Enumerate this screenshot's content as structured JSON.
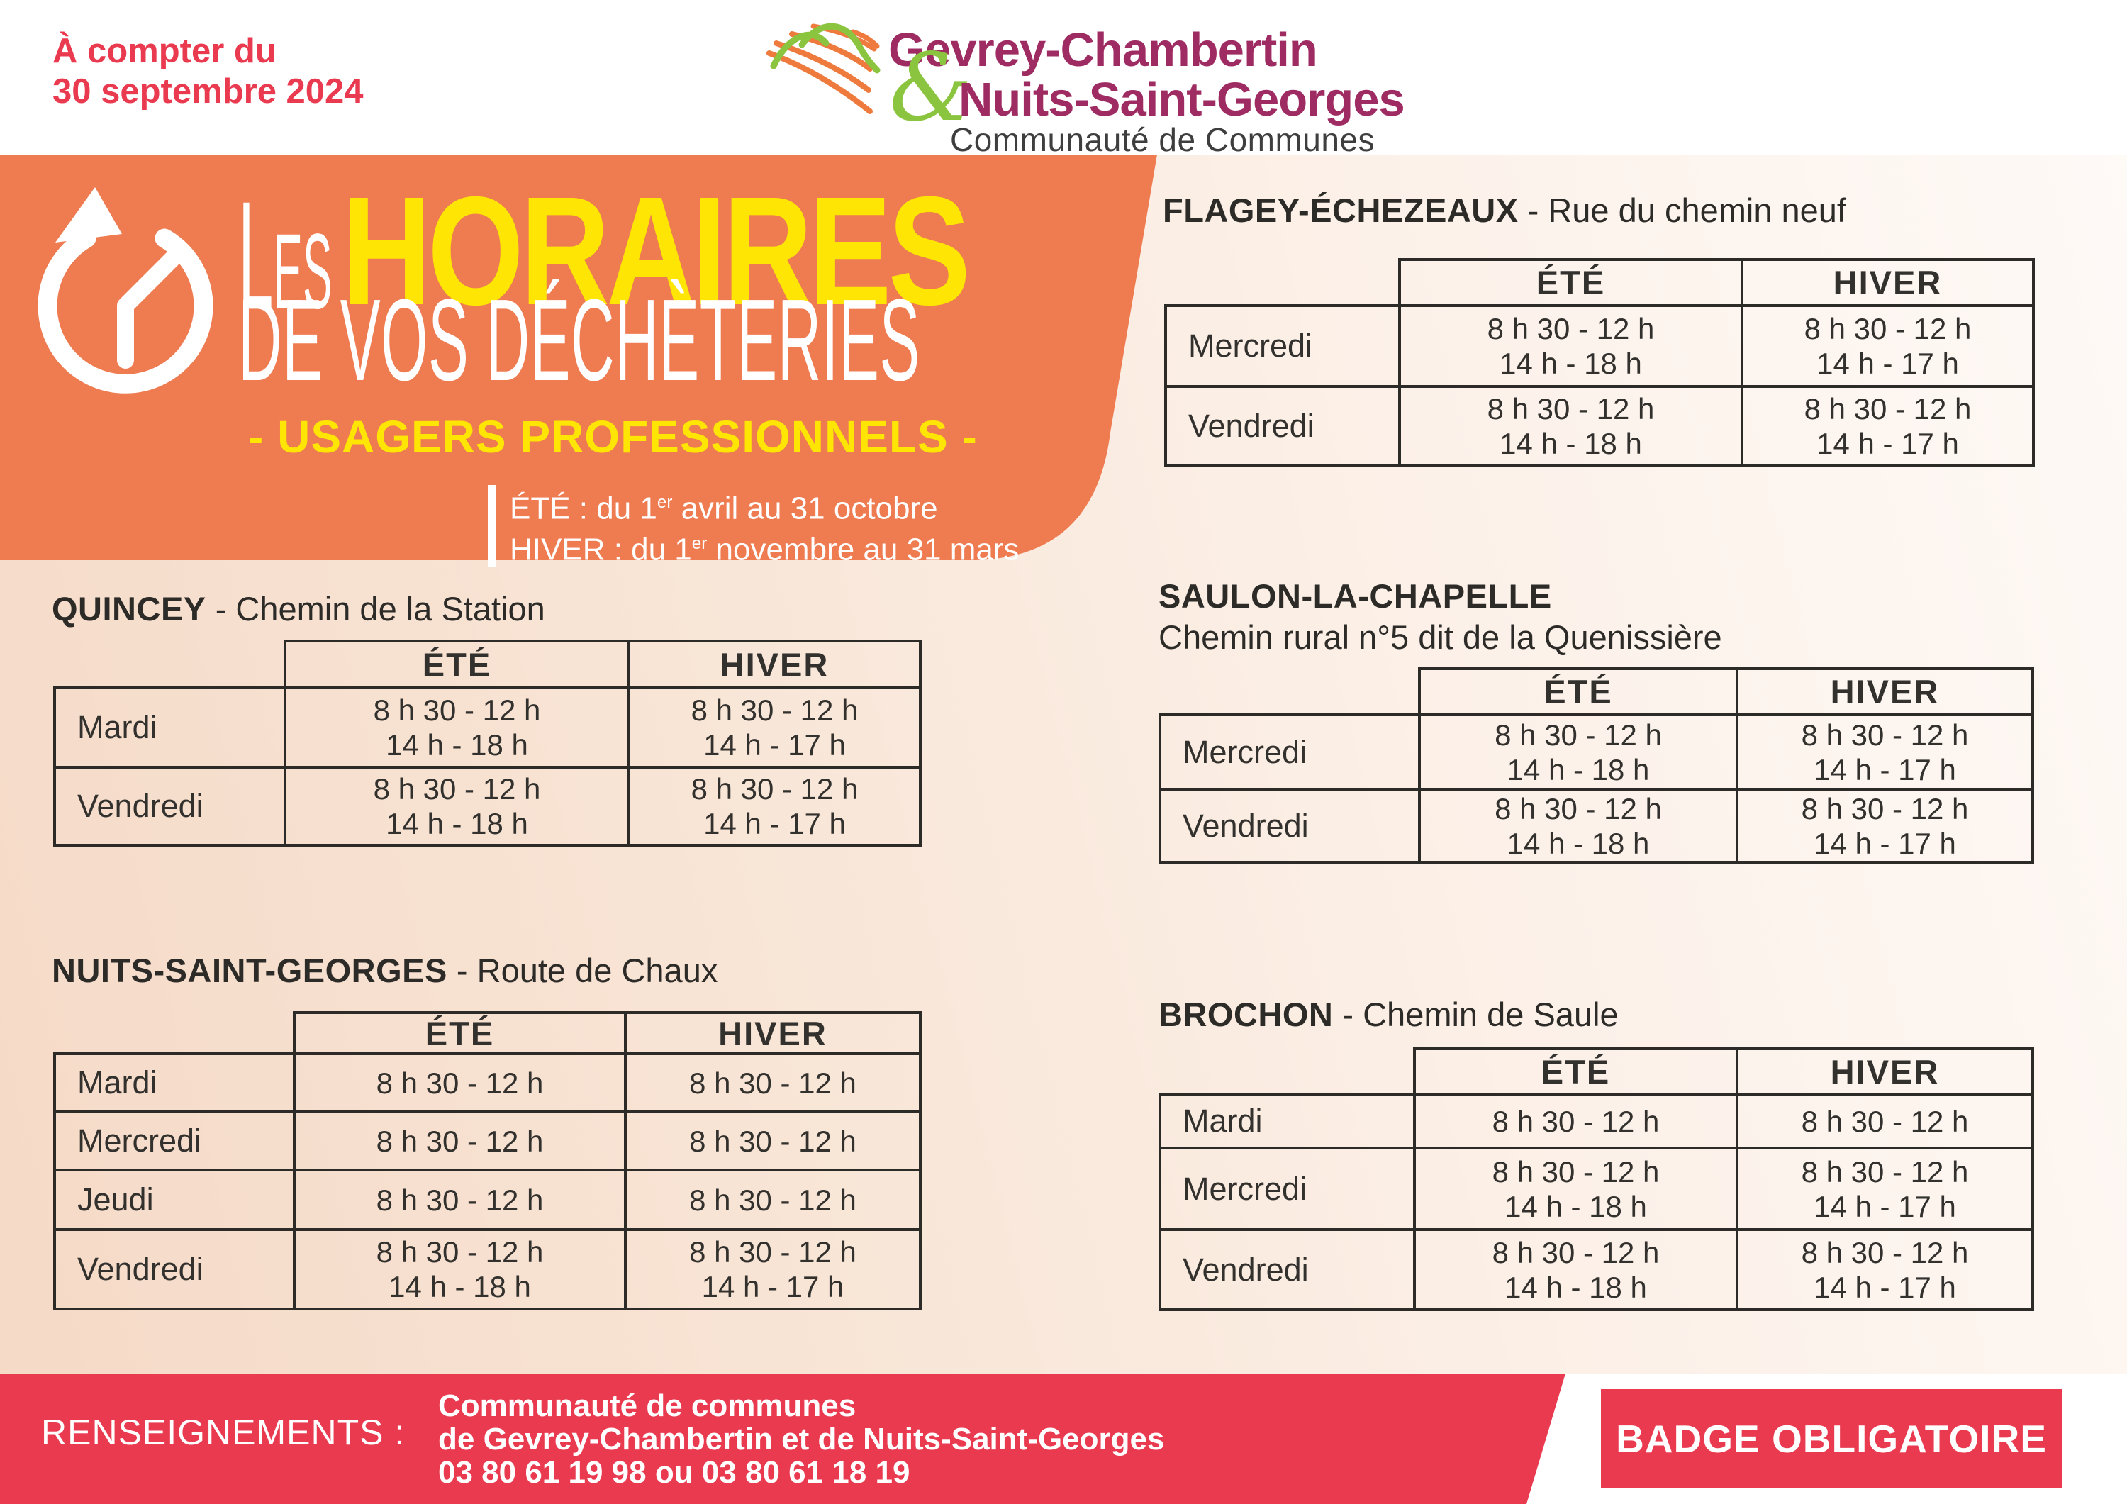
{
  "note": {
    "line1": "À compter du",
    "line2": "30 septembre 2024"
  },
  "logo": {
    "name_top": "Gevrey-Chambertin",
    "ampersand": "&",
    "name_bottom": "Nuits-Saint-Georges",
    "subtitle": "Communauté de Communes"
  },
  "banner": {
    "word1": "Les",
    "word2": "HORAIRES",
    "line2": "DE VOS DÉCHÈTERIES",
    "subtitle": "- USAGERS PROFESSIONNELS -",
    "legend_ete_pre": "ÉTÉ : du 1",
    "legend_ete_sup": "er",
    "legend_ete_post": " avril au 31 octobre",
    "legend_hiver_pre": "HIVER : du 1",
    "legend_hiver_sup": "er",
    "legend_hiver_post": " novembre au 31 mars"
  },
  "tables": [
    {
      "city": "QUINCEY",
      "sep": " - ",
      "street": "Chemin de la Station",
      "headers": [
        "ÉTÉ",
        "HIVER"
      ],
      "rows": [
        {
          "day": "Mardi",
          "ete": [
            "8 h 30 - 12 h",
            "14 h - 18 h"
          ],
          "hiver": [
            "8 h 30 - 12 h",
            "14 h - 17 h"
          ]
        },
        {
          "day": "Vendredi",
          "ete": [
            "8 h 30 - 12 h",
            "14 h - 18 h"
          ],
          "hiver": [
            "8 h 30 - 12 h",
            "14 h - 17 h"
          ]
        }
      ]
    },
    {
      "city": "NUITS-SAINT-GEORGES",
      "sep": " - ",
      "street": "Route de Chaux",
      "headers": [
        "ÉTÉ",
        "HIVER"
      ],
      "rows": [
        {
          "day": "Mardi",
          "ete": [
            "8 h 30 - 12 h"
          ],
          "hiver": [
            "8 h 30 - 12 h"
          ]
        },
        {
          "day": "Mercredi",
          "ete": [
            "8 h 30 - 12 h"
          ],
          "hiver": [
            "8 h 30 - 12 h"
          ]
        },
        {
          "day": "Jeudi",
          "ete": [
            "8 h 30 - 12 h"
          ],
          "hiver": [
            "8 h 30 - 12 h"
          ]
        },
        {
          "day": "Vendredi",
          "ete": [
            "8 h 30 - 12 h",
            "14 h - 18 h"
          ],
          "hiver": [
            "8 h 30 - 12 h",
            "14 h - 17 h"
          ]
        }
      ]
    },
    {
      "city": "FLAGEY-ÉCHEZEAUX",
      "sep": " - ",
      "street": "Rue du chemin neuf",
      "headers": [
        "ÉTÉ",
        "HIVER"
      ],
      "rows": [
        {
          "day": "Mercredi",
          "ete": [
            "8 h 30 - 12 h",
            "14 h - 18 h"
          ],
          "hiver": [
            "8 h 30 - 12 h",
            "14 h - 17 h"
          ]
        },
        {
          "day": "Vendredi",
          "ete": [
            "8 h 30 - 12 h",
            "14 h - 18 h"
          ],
          "hiver": [
            "8 h 30 - 12 h",
            "14 h - 17 h"
          ]
        }
      ]
    },
    {
      "city": "SAULON-LA-CHAPELLE",
      "sep": "",
      "street": "Chemin rural n°5 dit de la Quenissière",
      "headers": [
        "ÉTÉ",
        "HIVER"
      ],
      "rows": [
        {
          "day": "Mercredi",
          "ete": [
            "8 h 30 - 12 h",
            "14 h - 18 h"
          ],
          "hiver": [
            "8 h 30 - 12 h",
            "14 h - 17 h"
          ]
        },
        {
          "day": "Vendredi",
          "ete": [
            "8 h 30 - 12 h",
            "14 h - 18 h"
          ],
          "hiver": [
            "8 h 30 - 12 h",
            "14 h - 17 h"
          ]
        }
      ]
    },
    {
      "city": "BROCHON",
      "sep": " - ",
      "street": "Chemin de Saule",
      "headers": [
        "ÉTÉ",
        "HIVER"
      ],
      "rows": [
        {
          "day": "Mardi",
          "ete": [
            "8 h 30 - 12 h"
          ],
          "hiver": [
            "8 h 30 - 12 h"
          ]
        },
        {
          "day": "Mercredi",
          "ete": [
            "8 h 30 - 12 h",
            "14 h - 18 h"
          ],
          "hiver": [
            "8 h 30 - 12 h",
            "14 h - 17 h"
          ]
        },
        {
          "day": "Vendredi",
          "ete": [
            "8 h 30 - 12 h",
            "14 h - 18 h"
          ],
          "hiver": [
            "8 h 30 - 12 h",
            "14 h - 17 h"
          ]
        }
      ]
    }
  ],
  "footer": {
    "label": "RENSEIGNEMENTS :",
    "line1": "Communauté de communes",
    "line2": "de Gevrey-Chambertin et de Nuits-Saint-Georges",
    "line3": "03 80 61 19 98 ou 03 80 61 18 19"
  },
  "badge": "BADGE OBLIGATOIRE",
  "colors": {
    "orange": "#EF7B51",
    "yellow": "#FFE504",
    "red": "#E93A50",
    "magenta": "#9E2B62",
    "green": "#8BC53F",
    "ink": "#2D2B28",
    "bg_deep": "#f5d9c6",
    "bg_light": "#fefaf7"
  }
}
